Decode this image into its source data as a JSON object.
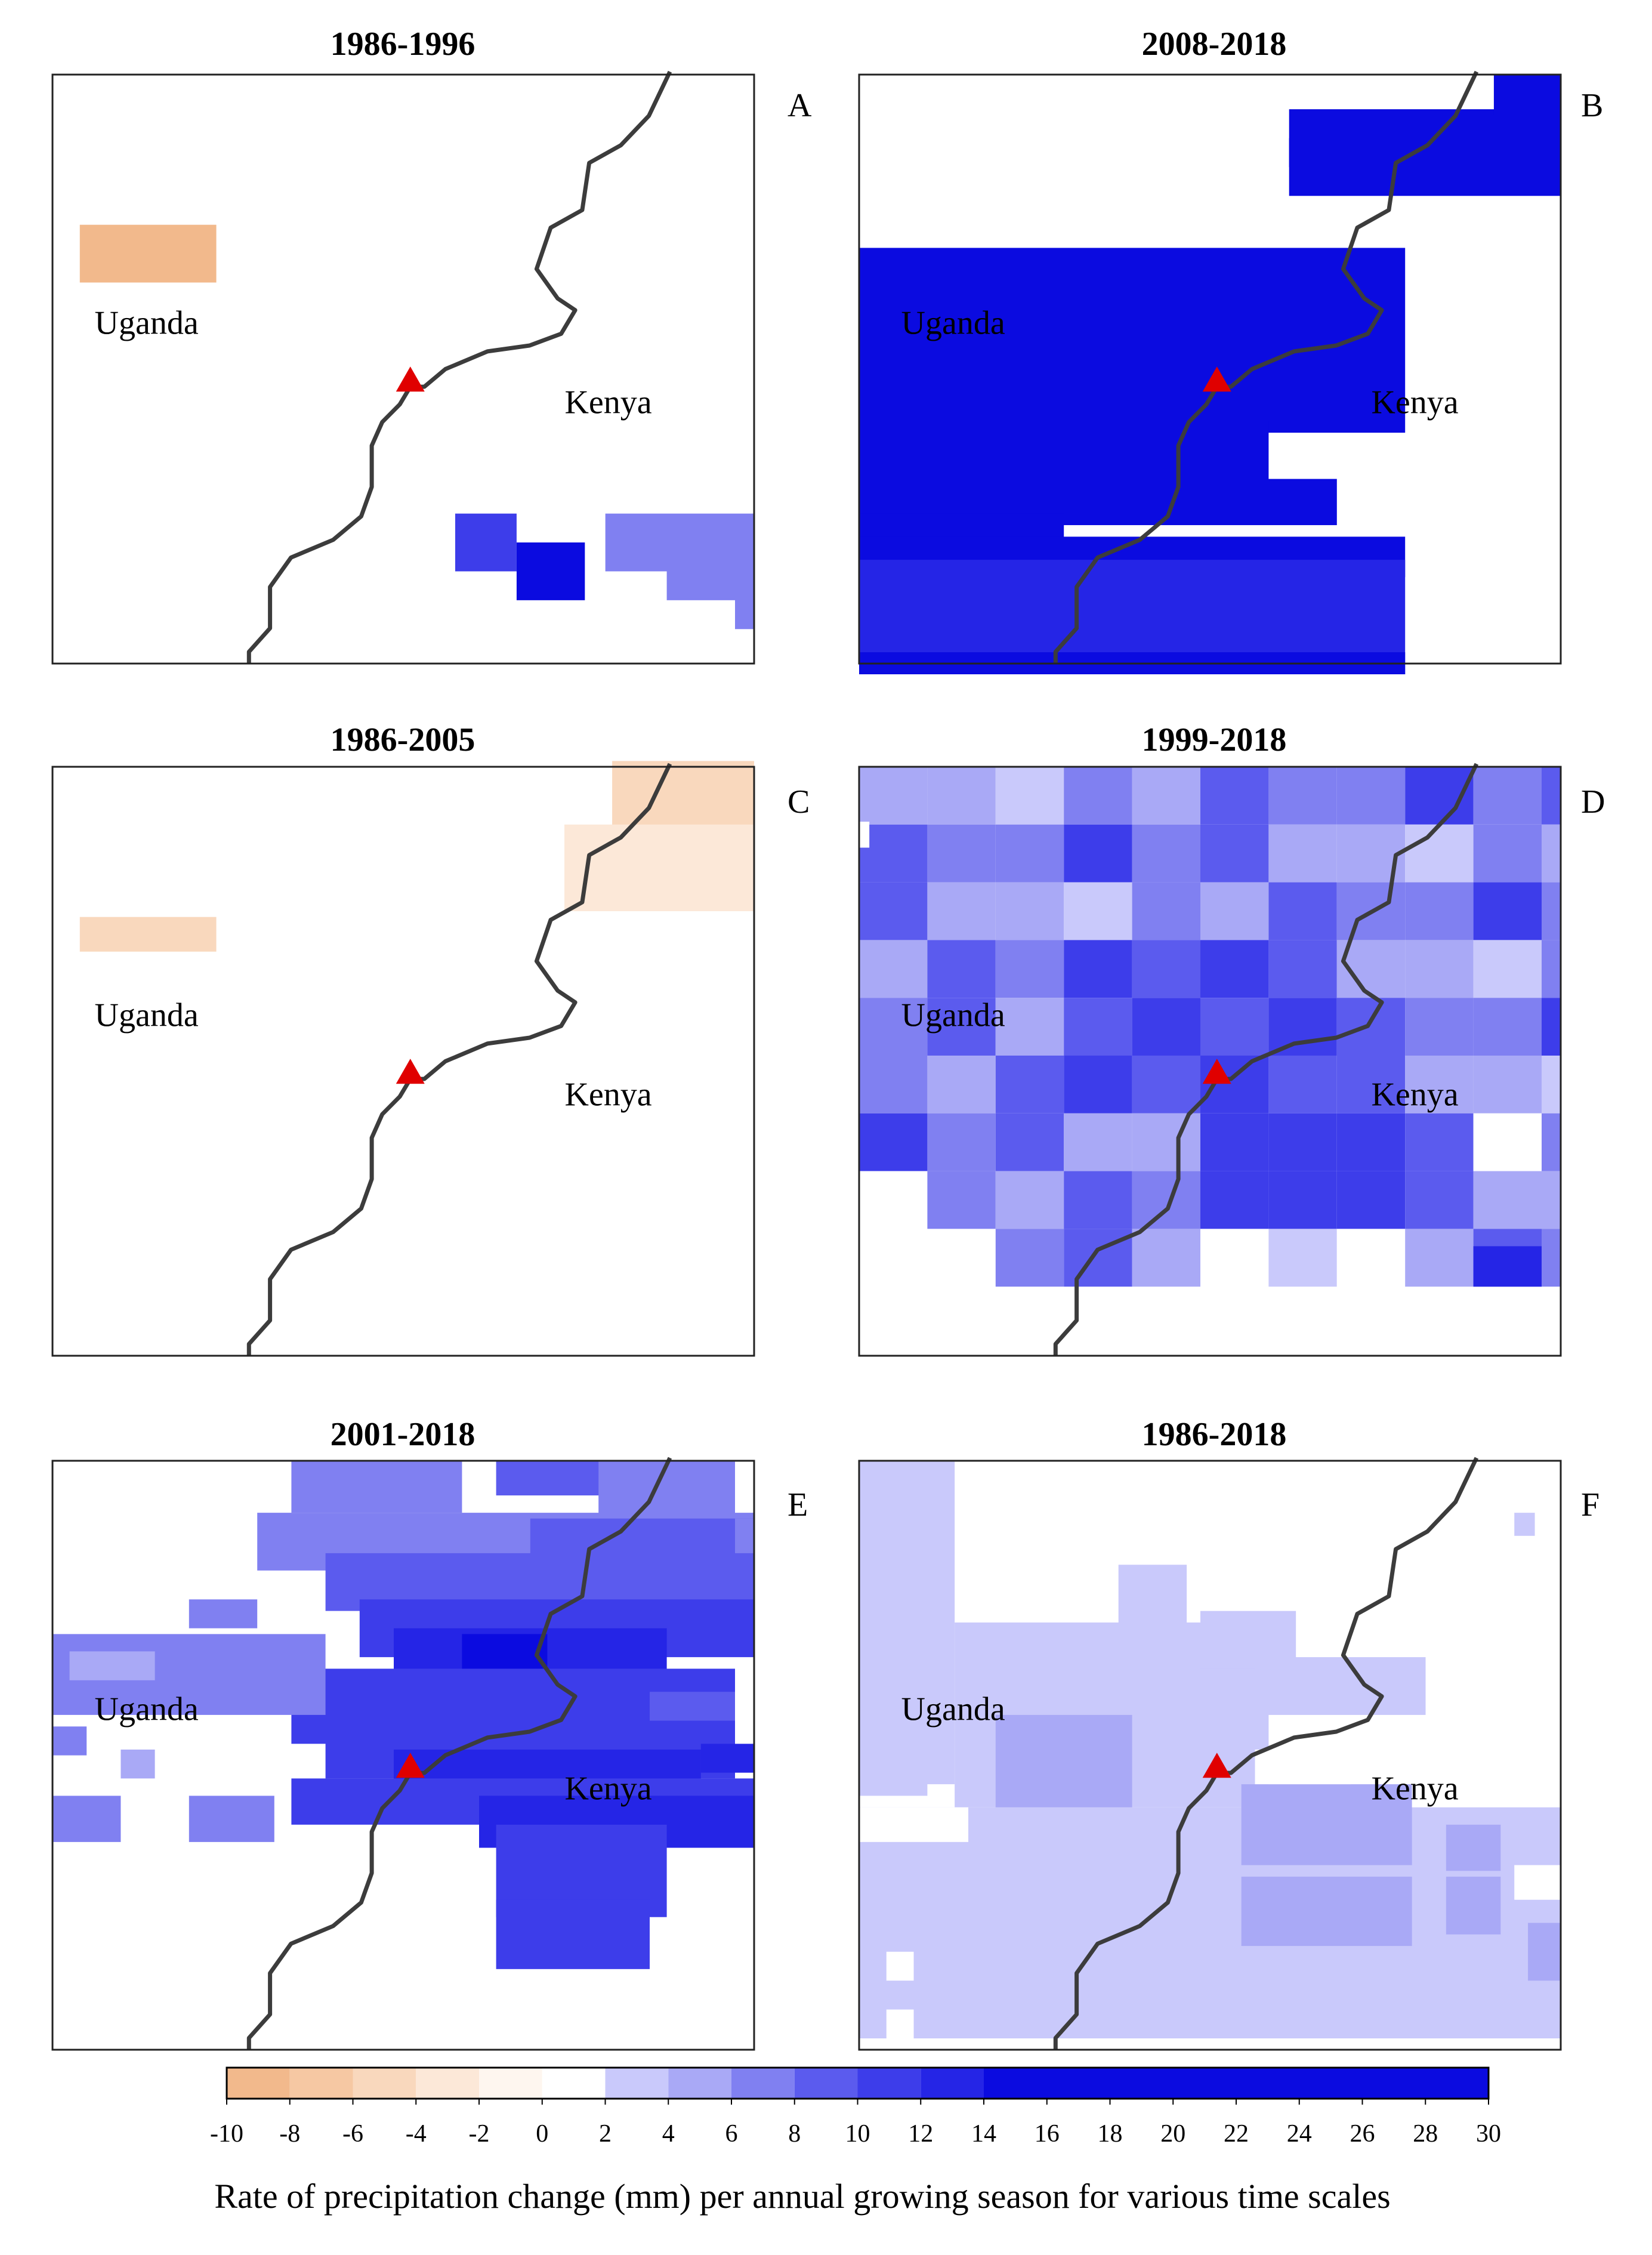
{
  "panels": [
    {
      "title": "1986-1996",
      "letter": "A",
      "country_west": "Uganda",
      "country_east": "Kenya"
    },
    {
      "title": "2008-2018",
      "letter": "B",
      "country_west": "Uganda",
      "country_east": "Kenya"
    },
    {
      "title": "1986-2005",
      "letter": "C",
      "country_west": "Uganda",
      "country_east": "Kenya"
    },
    {
      "title": "1999-2018",
      "letter": "D",
      "country_west": "Uganda",
      "country_east": "Kenya"
    },
    {
      "title": "2001-2018",
      "letter": "E",
      "country_west": "Uganda",
      "country_east": "Kenya"
    },
    {
      "title": "1986-2018",
      "letter": "F",
      "country_west": "Uganda",
      "country_east": "Kenya"
    }
  ],
  "legend": {
    "title": "Rate of precipitation change (mm) per annual growing season for various time scales",
    "ticks": [
      "-10",
      "-8",
      "-6",
      "-4",
      "-2",
      "0",
      "2",
      "4",
      "6",
      "8",
      "10",
      "12",
      "14",
      "16",
      "18",
      "20",
      "22",
      "24",
      "26",
      "28",
      "30"
    ],
    "bins": [
      {
        "from": -10,
        "to": -8,
        "color": "#f2b98c"
      },
      {
        "from": -8,
        "to": -6,
        "color": "#f6c8a3"
      },
      {
        "from": -6,
        "to": -4,
        "color": "#f9d8bd"
      },
      {
        "from": -4,
        "to": -2,
        "color": "#fce8d8"
      },
      {
        "from": -2,
        "to": 0,
        "color": "#fef6ef"
      },
      {
        "from": 0,
        "to": 2,
        "color": "#ffffff"
      },
      {
        "from": 2,
        "to": 4,
        "color": "#c9c9fb"
      },
      {
        "from": 4,
        "to": 6,
        "color": "#a9a9f6"
      },
      {
        "from": 6,
        "to": 8,
        "color": "#8080f1"
      },
      {
        "from": 8,
        "to": 10,
        "color": "#5b5bee"
      },
      {
        "from": 10,
        "to": 12,
        "color": "#3d3dea"
      },
      {
        "from": 12,
        "to": 14,
        "color": "#2525e6"
      },
      {
        "from": 14,
        "to": 30,
        "color": "#0b0be0"
      }
    ]
  },
  "markers": {
    "site_color": "#e00000",
    "border_color": "#3c3c3c"
  },
  "chart_data": [
    {
      "type": "heatmap",
      "title": "1986-1996",
      "panel": "A",
      "description_values": "mostly 0-2; small area -10 to -8 in NW Uganda; 6-14 patches SE Kenya"
    },
    {
      "type": "heatmap",
      "title": "2008-2018",
      "panel": "B",
      "description_values": "14-30 over western Uganda and northern area; remainder 0-2"
    },
    {
      "type": "heatmap",
      "title": "1986-2005",
      "panel": "C",
      "description_values": "mostly 0-2; small -6 to -2 patches in north"
    },
    {
      "type": "heatmap",
      "title": "1999-2018",
      "panel": "D",
      "description_values": "widespread 4-14 increase across both countries"
    },
    {
      "type": "heatmap",
      "title": "2001-2018",
      "panel": "E",
      "description_values": "4-16 increase concentrated around border; white gaps"
    },
    {
      "type": "heatmap",
      "title": "1986-2018",
      "panel": "F",
      "description_values": "widespread 2-6 increase"
    }
  ]
}
